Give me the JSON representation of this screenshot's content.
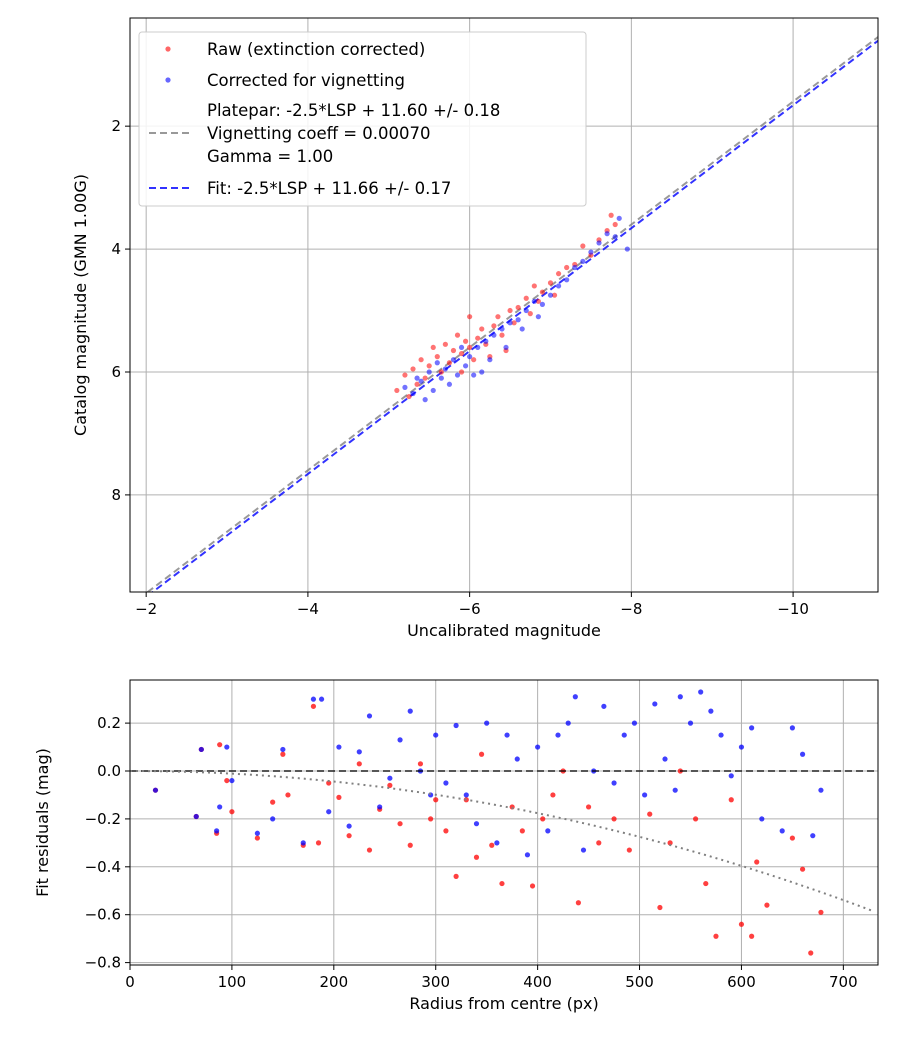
{
  "chart_data": [
    {
      "type": "scatter",
      "xlabel": "Uncalibrated magnitude",
      "ylabel": "Catalog magnitude (GMN 1.00G)",
      "xlim": [
        -1.8,
        -11.05
      ],
      "ylim": [
        9.58,
        0.24
      ],
      "xticks": [
        -2,
        -4,
        -6,
        -8,
        -10
      ],
      "yticks": [
        2,
        4,
        6,
        8
      ],
      "grid": true,
      "legend_position": "top-left",
      "legend": [
        {
          "label": "Raw (extinction corrected)",
          "kind": "marker",
          "color": "#ff0000"
        },
        {
          "label": "Corrected for vignetting",
          "kind": "marker",
          "color": "#0000ff"
        },
        {
          "label": "Platepar: -2.5*LSP + 11.60 +/- 0.18",
          "kind": "none"
        },
        {
          "label": "Vignetting coeff = 0.00070",
          "kind": "dashed",
          "color": "#808080"
        },
        {
          "label": "Gamma = 1.00",
          "kind": "none"
        },
        {
          "label": "Fit: -2.5*LSP + 11.66 +/- 0.17",
          "kind": "dashed",
          "color": "#0000ff"
        }
      ],
      "lines": [
        {
          "name": "platepar",
          "intercept": 11.6,
          "slope": 1,
          "color": "#808080"
        },
        {
          "name": "fit",
          "intercept": 11.66,
          "slope": 1,
          "color": "#0000ff"
        }
      ],
      "series": [
        {
          "name": "Raw (extinction corrected)",
          "color": "#ff0000",
          "points": [
            [
              -5.1,
              6.3
            ],
            [
              -5.2,
              6.05
            ],
            [
              -5.3,
              5.95
            ],
            [
              -5.35,
              6.2
            ],
            [
              -5.4,
              5.8
            ],
            [
              -5.45,
              6.1
            ],
            [
              -5.5,
              5.9
            ],
            [
              -5.55,
              5.6
            ],
            [
              -5.6,
              5.75
            ],
            [
              -5.65,
              6.0
            ],
            [
              -5.7,
              5.55
            ],
            [
              -5.75,
              5.85
            ],
            [
              -5.8,
              5.65
            ],
            [
              -5.85,
              5.4
            ],
            [
              -5.9,
              5.7
            ],
            [
              -5.95,
              5.5
            ],
            [
              -6.0,
              5.1
            ],
            [
              -6.0,
              5.6
            ],
            [
              -6.05,
              5.8
            ],
            [
              -6.1,
              5.45
            ],
            [
              -6.15,
              5.3
            ],
            [
              -6.2,
              5.55
            ],
            [
              -6.3,
              5.25
            ],
            [
              -6.35,
              5.1
            ],
            [
              -6.4,
              5.4
            ],
            [
              -6.5,
              5.0
            ],
            [
              -6.55,
              5.2
            ],
            [
              -6.6,
              4.95
            ],
            [
              -6.7,
              4.8
            ],
            [
              -6.75,
              5.05
            ],
            [
              -6.8,
              4.6
            ],
            [
              -6.85,
              4.85
            ],
            [
              -6.9,
              4.7
            ],
            [
              -7.0,
              4.55
            ],
            [
              -7.05,
              4.75
            ],
            [
              -7.1,
              4.4
            ],
            [
              -7.2,
              4.3
            ],
            [
              -7.3,
              4.25
            ],
            [
              -7.4,
              3.95
            ],
            [
              -7.5,
              4.1
            ],
            [
              -7.6,
              3.85
            ],
            [
              -7.7,
              3.7
            ],
            [
              -7.75,
              3.45
            ],
            [
              -7.8,
              3.6
            ],
            [
              -5.25,
              6.4
            ],
            [
              -6.25,
              5.75
            ],
            [
              -6.45,
              5.65
            ],
            [
              -5.9,
              6.0
            ]
          ]
        },
        {
          "name": "Corrected for vignetting",
          "color": "#0000ff",
          "points": [
            [
              -5.2,
              6.25
            ],
            [
              -5.3,
              6.35
            ],
            [
              -5.35,
              6.1
            ],
            [
              -5.4,
              6.15
            ],
            [
              -5.5,
              6.0
            ],
            [
              -5.55,
              6.3
            ],
            [
              -5.6,
              5.85
            ],
            [
              -5.65,
              6.1
            ],
            [
              -5.7,
              5.95
            ],
            [
              -5.8,
              5.8
            ],
            [
              -5.85,
              6.05
            ],
            [
              -5.9,
              5.6
            ],
            [
              -5.95,
              5.9
            ],
            [
              -6.0,
              5.75
            ],
            [
              -6.05,
              6.05
            ],
            [
              -6.1,
              5.6
            ],
            [
              -6.2,
              5.5
            ],
            [
              -6.25,
              5.8
            ],
            [
              -6.3,
              5.4
            ],
            [
              -6.4,
              5.3
            ],
            [
              -6.45,
              5.6
            ],
            [
              -6.5,
              5.2
            ],
            [
              -6.6,
              5.15
            ],
            [
              -6.7,
              5.0
            ],
            [
              -6.8,
              4.85
            ],
            [
              -6.85,
              5.1
            ],
            [
              -6.9,
              4.9
            ],
            [
              -7.0,
              4.75
            ],
            [
              -7.1,
              4.6
            ],
            [
              -7.2,
              4.5
            ],
            [
              -7.3,
              4.3
            ],
            [
              -7.4,
              4.2
            ],
            [
              -7.5,
              4.05
            ],
            [
              -7.6,
              3.9
            ],
            [
              -7.7,
              3.75
            ],
            [
              -7.8,
              3.8
            ],
            [
              -7.85,
              3.5
            ],
            [
              -7.95,
              4.0
            ],
            [
              -5.45,
              6.45
            ],
            [
              -6.15,
              6.0
            ],
            [
              -5.75,
              6.2
            ],
            [
              -6.65,
              5.3
            ]
          ]
        }
      ]
    },
    {
      "type": "scatter",
      "xlabel": "Radius from centre (px)",
      "ylabel": "Fit residuals (mag)",
      "xlim": [
        0,
        734
      ],
      "ylim": [
        -0.81,
        0.38
      ],
      "xticks": [
        0,
        100,
        200,
        300,
        400,
        500,
        600,
        700
      ],
      "yticks": [
        0.2,
        0.0,
        -0.2,
        -0.4,
        -0.6,
        -0.8
      ],
      "ytick_labels": [
        "0.2",
        "0.0",
        "−0.2",
        "−0.4",
        "−0.6",
        "−0.8"
      ],
      "grid": true,
      "zero_line": {
        "y": 0,
        "style": "dashed",
        "color": "#000000"
      },
      "vignetting_curve": {
        "style": "dotted",
        "color": "#808080",
        "coefficient": 0.0007
      },
      "series": [
        {
          "name": "Raw",
          "color": "#ff0000",
          "points": [
            [
              25,
              -0.08
            ],
            [
              65,
              -0.19
            ],
            [
              70,
              0.09
            ],
            [
              85,
              -0.26
            ],
            [
              88,
              0.11
            ],
            [
              95,
              -0.04
            ],
            [
              100,
              -0.17
            ],
            [
              125,
              -0.28
            ],
            [
              140,
              -0.13
            ],
            [
              150,
              0.07
            ],
            [
              155,
              -0.1
            ],
            [
              170,
              -0.31
            ],
            [
              180,
              0.27
            ],
            [
              185,
              -0.3
            ],
            [
              195,
              -0.05
            ],
            [
              205,
              -0.11
            ],
            [
              215,
              -0.27
            ],
            [
              225,
              0.03
            ],
            [
              235,
              -0.33
            ],
            [
              245,
              -0.16
            ],
            [
              255,
              -0.06
            ],
            [
              265,
              -0.22
            ],
            [
              275,
              -0.31
            ],
            [
              285,
              0.03
            ],
            [
              295,
              -0.2
            ],
            [
              300,
              -0.12
            ],
            [
              310,
              -0.25
            ],
            [
              320,
              -0.44
            ],
            [
              330,
              -0.12
            ],
            [
              340,
              -0.36
            ],
            [
              345,
              0.07
            ],
            [
              355,
              -0.31
            ],
            [
              365,
              -0.47
            ],
            [
              375,
              -0.15
            ],
            [
              385,
              -0.25
            ],
            [
              395,
              -0.48
            ],
            [
              405,
              -0.2
            ],
            [
              415,
              -0.1
            ],
            [
              425,
              0.0
            ],
            [
              440,
              -0.55
            ],
            [
              450,
              -0.15
            ],
            [
              460,
              -0.3
            ],
            [
              475,
              -0.2
            ],
            [
              490,
              -0.33
            ],
            [
              510,
              -0.18
            ],
            [
              520,
              -0.57
            ],
            [
              530,
              -0.3
            ],
            [
              540,
              0.0
            ],
            [
              555,
              -0.2
            ],
            [
              565,
              -0.47
            ],
            [
              575,
              -0.69
            ],
            [
              590,
              -0.12
            ],
            [
              600,
              -0.64
            ],
            [
              610,
              -0.69
            ],
            [
              615,
              -0.38
            ],
            [
              625,
              -0.56
            ],
            [
              650,
              -0.28
            ],
            [
              660,
              -0.41
            ],
            [
              668,
              -0.76
            ],
            [
              678,
              -0.59
            ]
          ]
        },
        {
          "name": "Corrected",
          "color": "#0000ff",
          "points": [
            [
              25,
              -0.08
            ],
            [
              65,
              -0.19
            ],
            [
              70,
              0.09
            ],
            [
              85,
              -0.25
            ],
            [
              88,
              -0.15
            ],
            [
              95,
              0.1
            ],
            [
              100,
              -0.04
            ],
            [
              125,
              -0.26
            ],
            [
              140,
              -0.2
            ],
            [
              150,
              0.09
            ],
            [
              170,
              -0.3
            ],
            [
              180,
              0.3
            ],
            [
              188,
              0.3
            ],
            [
              195,
              -0.17
            ],
            [
              205,
              0.1
            ],
            [
              215,
              -0.23
            ],
            [
              225,
              0.08
            ],
            [
              235,
              0.23
            ],
            [
              245,
              -0.15
            ],
            [
              255,
              -0.03
            ],
            [
              265,
              0.13
            ],
            [
              275,
              0.25
            ],
            [
              285,
              0.0
            ],
            [
              295,
              -0.1
            ],
            [
              300,
              0.15
            ],
            [
              310,
              -0.05
            ],
            [
              320,
              0.19
            ],
            [
              330,
              -0.1
            ],
            [
              340,
              -0.22
            ],
            [
              350,
              0.2
            ],
            [
              360,
              -0.3
            ],
            [
              370,
              0.15
            ],
            [
              380,
              0.05
            ],
            [
              390,
              -0.35
            ],
            [
              400,
              0.1
            ],
            [
              410,
              -0.25
            ],
            [
              420,
              0.15
            ],
            [
              430,
              0.2
            ],
            [
              437,
              0.31
            ],
            [
              445,
              -0.33
            ],
            [
              455,
              0.0
            ],
            [
              465,
              0.27
            ],
            [
              475,
              -0.05
            ],
            [
              485,
              0.15
            ],
            [
              495,
              0.2
            ],
            [
              505,
              -0.1
            ],
            [
              515,
              0.28
            ],
            [
              525,
              0.05
            ],
            [
              535,
              -0.08
            ],
            [
              540,
              0.31
            ],
            [
              550,
              0.2
            ],
            [
              560,
              0.33
            ],
            [
              570,
              0.25
            ],
            [
              580,
              0.15
            ],
            [
              590,
              -0.02
            ],
            [
              600,
              0.1
            ],
            [
              610,
              0.18
            ],
            [
              620,
              -0.2
            ],
            [
              640,
              -0.25
            ],
            [
              650,
              0.18
            ],
            [
              660,
              0.07
            ],
            [
              670,
              -0.27
            ],
            [
              678,
              -0.08
            ]
          ]
        }
      ]
    }
  ]
}
